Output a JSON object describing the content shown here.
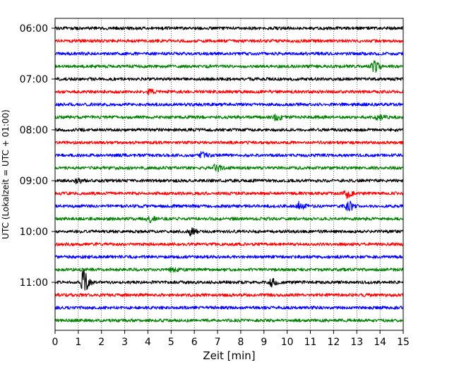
{
  "chart_data": {
    "type": "line",
    "title": "",
    "xlabel": "Zeit  [min]",
    "ylabel": "UTC (Lokalzeit = UTC + 01:00)",
    "xlim": [
      0,
      15
    ],
    "x_ticks": [
      0,
      1,
      2,
      3,
      4,
      5,
      6,
      7,
      8,
      9,
      10,
      11,
      12,
      13,
      14,
      15
    ],
    "grid": "vertical dotted at each minute",
    "trace_colors_cycle": [
      "#000000",
      "#ff0000",
      "#0000ff",
      "#008000"
    ],
    "time_labels": [
      {
        "row": 0,
        "label": "06:00"
      },
      {
        "row": 4,
        "label": "07:00"
      },
      {
        "row": 8,
        "label": "08:00"
      },
      {
        "row": 12,
        "label": "09:00"
      },
      {
        "row": 16,
        "label": "10:00"
      },
      {
        "row": 20,
        "label": "11:00"
      }
    ],
    "traces": [
      {
        "start": "06:00",
        "color": "#000000",
        "events": []
      },
      {
        "start": "06:15",
        "color": "#ff0000",
        "events": []
      },
      {
        "start": "06:30",
        "color": "#0000ff",
        "events": []
      },
      {
        "start": "06:45",
        "color": "#008000",
        "events": [
          {
            "t": 13.7,
            "amp": 0.5
          }
        ]
      },
      {
        "start": "07:00",
        "color": "#000000",
        "events": []
      },
      {
        "start": "07:15",
        "color": "#ff0000",
        "events": [
          {
            "t": 4.0,
            "amp": 0.2
          }
        ]
      },
      {
        "start": "07:30",
        "color": "#0000ff",
        "events": []
      },
      {
        "start": "07:45",
        "color": "#008000",
        "events": [
          {
            "t": 9.5,
            "amp": 0.25
          },
          {
            "t": 13.9,
            "amp": 0.3
          }
        ]
      },
      {
        "start": "08:00",
        "color": "#000000",
        "events": []
      },
      {
        "start": "08:15",
        "color": "#ff0000",
        "events": []
      },
      {
        "start": "08:30",
        "color": "#0000ff",
        "events": [
          {
            "t": 6.3,
            "amp": 0.25
          }
        ]
      },
      {
        "start": "08:45",
        "color": "#008000",
        "events": [
          {
            "t": 6.9,
            "amp": 0.3
          }
        ]
      },
      {
        "start": "09:00",
        "color": "#000000",
        "events": [
          {
            "t": 0.9,
            "amp": 0.2
          }
        ]
      },
      {
        "start": "09:15",
        "color": "#ff0000",
        "events": [
          {
            "t": 12.5,
            "amp": 0.35
          }
        ]
      },
      {
        "start": "09:30",
        "color": "#0000ff",
        "events": [
          {
            "t": 10.5,
            "amp": 0.3
          },
          {
            "t": 12.6,
            "amp": 0.45
          }
        ]
      },
      {
        "start": "09:45",
        "color": "#008000",
        "events": [
          {
            "t": 4.0,
            "amp": 0.3
          }
        ]
      },
      {
        "start": "10:00",
        "color": "#000000",
        "events": [
          {
            "t": 5.8,
            "amp": 0.3
          }
        ]
      },
      {
        "start": "10:15",
        "color": "#ff0000",
        "events": []
      },
      {
        "start": "10:30",
        "color": "#0000ff",
        "events": []
      },
      {
        "start": "10:45",
        "color": "#008000",
        "events": [
          {
            "t": 5.0,
            "amp": 0.2
          }
        ]
      },
      {
        "start": "11:00",
        "color": "#000000",
        "events": [
          {
            "t": 1.2,
            "amp": 0.95
          },
          {
            "t": 9.3,
            "amp": 0.3
          }
        ]
      },
      {
        "start": "11:15",
        "color": "#ff0000",
        "events": []
      },
      {
        "start": "11:30",
        "color": "#0000ff",
        "events": []
      },
      {
        "start": "11:45",
        "color": "#008000",
        "events": []
      }
    ]
  }
}
